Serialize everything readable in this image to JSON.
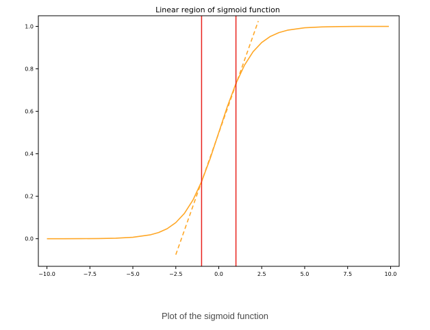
{
  "caption": "Plot of the sigmoid function",
  "chart_data": {
    "type": "line",
    "title": "Linear region of sigmoid function",
    "xlabel": "",
    "ylabel": "",
    "xlim": [
      -10.5,
      10.5
    ],
    "ylim": [
      -0.13,
      1.05
    ],
    "x_ticks": [
      -10.0,
      -7.5,
      -5.0,
      -2.5,
      0.0,
      2.5,
      5.0,
      7.5,
      10.0
    ],
    "x_tick_labels": [
      "−10.0",
      "−7.5",
      "−5.0",
      "−2.5",
      "0.0",
      "2.5",
      "5.0",
      "7.5",
      "10.0"
    ],
    "y_ticks": [
      0.0,
      0.2,
      0.4,
      0.6,
      0.8,
      1.0
    ],
    "y_tick_labels": [
      "0.0",
      "0.2",
      "0.4",
      "0.6",
      "0.8",
      "1.0"
    ],
    "grid": false,
    "series": [
      {
        "kind": "curve",
        "style": "solid",
        "color": "#ffa726",
        "x": [
          -10,
          -9,
          -8,
          -7,
          -6,
          -5,
          -4,
          -3.5,
          -3,
          -2.5,
          -2,
          -1.5,
          -1,
          -0.5,
          0,
          0.5,
          1,
          1.5,
          2,
          2.5,
          3,
          3.5,
          4,
          5,
          6,
          7,
          8,
          9,
          9.9
        ],
        "y": [
          5e-05,
          0.00012,
          0.00034,
          0.00091,
          0.00247,
          0.0067,
          0.018,
          0.0293,
          0.0474,
          0.0759,
          0.1192,
          0.1824,
          0.2689,
          0.3775,
          0.5,
          0.6225,
          0.7311,
          0.8176,
          0.8808,
          0.9241,
          0.9526,
          0.9707,
          0.982,
          0.9933,
          0.9975,
          0.9991,
          0.9997,
          0.9999,
          0.99995
        ]
      },
      {
        "kind": "tangent",
        "style": "dashed",
        "color": "#ffa726",
        "x": [
          -2.5,
          2.3
        ],
        "y": [
          -0.075,
          1.025
        ]
      }
    ],
    "vertical_lines": [
      {
        "x": -1.0,
        "color": "#e8221c"
      },
      {
        "x": 1.0,
        "color": "#e8221c"
      }
    ]
  }
}
